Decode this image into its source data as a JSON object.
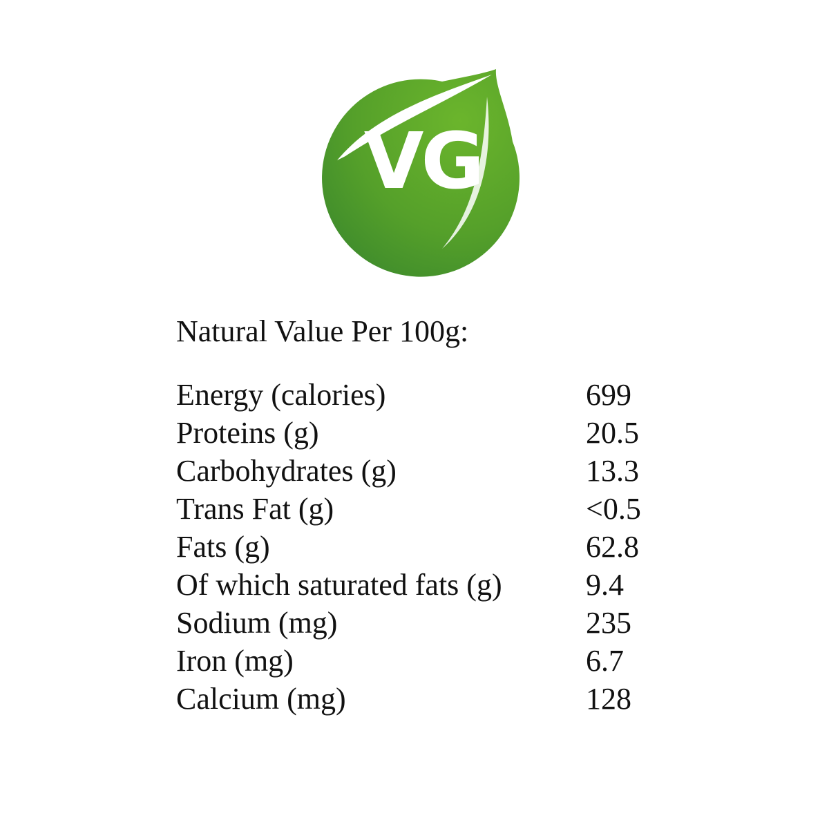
{
  "logo": {
    "text": "VG"
  },
  "title": "Natural Value Per 100g:",
  "table": {
    "rows": [
      [
        "Energy (calories)",
        "699"
      ],
      [
        "Proteins (g)",
        "20.5"
      ],
      [
        "Carbohydrates (g)",
        "13.3"
      ],
      [
        "Trans Fat (g)",
        "<0.5"
      ],
      [
        "Fats (g)",
        "62.8"
      ],
      [
        "Of which saturated fats (g)",
        "9.4"
      ],
      [
        "Sodium (mg)",
        "235"
      ],
      [
        "Iron (mg)",
        "6.7"
      ],
      [
        "Calcium (mg)",
        "128"
      ]
    ]
  }
}
